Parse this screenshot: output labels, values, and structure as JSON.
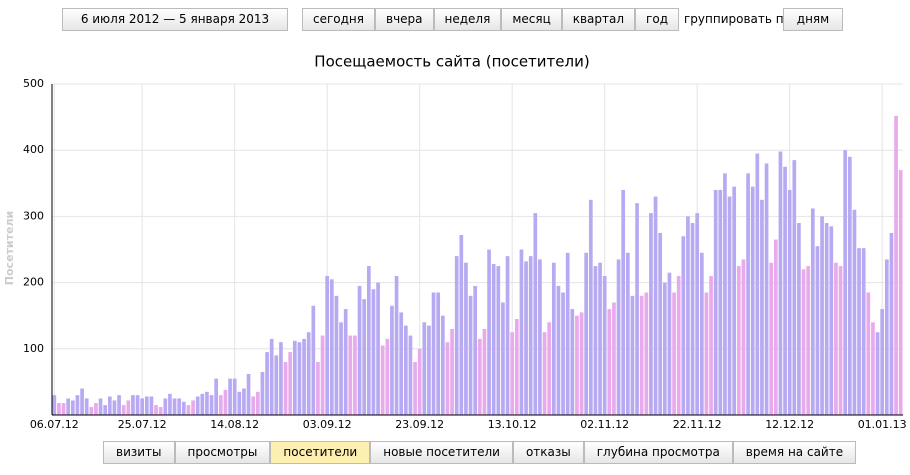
{
  "ui": {
    "date_range": "6 июля 2012 — 5 января 2013",
    "periods": [
      "сегодня",
      "вчера",
      "неделя",
      "месяц",
      "квартал",
      "год"
    ],
    "group_label": "группировать по",
    "group_value": "дням",
    "tabs": [
      "визиты",
      "просмотры",
      "посетители",
      "новые посетители",
      "отказы",
      "глубина просмотра",
      "время на сайте"
    ]
  },
  "chart_data": {
    "type": "bar",
    "title": "Посещаемость сайта (посетители)",
    "y_label": "Посетители",
    "categories": [
      "06.07.12",
      null,
      null,
      null,
      null,
      null,
      null,
      null,
      null,
      null,
      null,
      null,
      null,
      null,
      null,
      null,
      null,
      null,
      null,
      "25.07.12",
      null,
      null,
      null,
      null,
      null,
      null,
      null,
      null,
      null,
      null,
      null,
      null,
      null,
      null,
      null,
      null,
      null,
      null,
      null,
      "14.08.12",
      null,
      null,
      null,
      null,
      null,
      null,
      null,
      null,
      null,
      null,
      null,
      null,
      null,
      null,
      null,
      null,
      null,
      null,
      null,
      "03.09.12",
      null,
      null,
      null,
      null,
      null,
      null,
      null,
      null,
      null,
      null,
      null,
      null,
      null,
      null,
      null,
      null,
      null,
      null,
      null,
      "23.09.12",
      null,
      null,
      null,
      null,
      null,
      null,
      null,
      null,
      null,
      null,
      null,
      null,
      null,
      null,
      null,
      null,
      null,
      null,
      null,
      "13.10.12",
      null,
      null,
      null,
      null,
      null,
      null,
      null,
      null,
      null,
      null,
      null,
      null,
      null,
      null,
      null,
      null,
      null,
      null,
      null,
      "02.11.12",
      null,
      null,
      null,
      null,
      null,
      null,
      null,
      null,
      null,
      null,
      null,
      null,
      null,
      null,
      null,
      null,
      null,
      null,
      null,
      "22.11.12",
      null,
      null,
      null,
      null,
      null,
      null,
      null,
      null,
      null,
      null,
      null,
      null,
      null,
      null,
      null,
      null,
      null,
      null,
      null,
      "12.12.12",
      null,
      null,
      null,
      null,
      null,
      null,
      null,
      null,
      null,
      null,
      null,
      null,
      null,
      null,
      null,
      null,
      null,
      null,
      null,
      "01.01.13",
      null,
      null,
      null,
      null
    ],
    "series": [
      {
        "color": "#b8aaf2",
        "values": [
          30,
          null,
          null,
          25,
          22,
          30,
          40,
          25,
          null,
          null,
          25,
          15,
          28,
          22,
          30,
          null,
          null,
          30,
          30,
          25,
          28,
          28,
          null,
          null,
          25,
          32,
          25,
          25,
          20,
          null,
          null,
          28,
          32,
          35,
          30,
          55,
          null,
          null,
          55,
          55,
          35,
          40,
          62,
          null,
          null,
          65,
          95,
          115,
          90,
          110,
          null,
          null,
          112,
          110,
          115,
          125,
          165,
          null,
          null,
          210,
          205,
          180,
          140,
          160,
          null,
          null,
          195,
          175,
          225,
          190,
          200,
          null,
          null,
          165,
          210,
          155,
          135,
          120,
          null,
          null,
          140,
          135,
          185,
          185,
          150,
          null,
          null,
          240,
          272,
          230,
          180,
          195,
          null,
          null,
          250,
          228,
          225,
          170,
          240,
          null,
          null,
          250,
          232,
          240,
          305,
          235,
          null,
          null,
          230,
          195,
          185,
          245,
          160,
          null,
          null,
          245,
          325,
          225,
          230,
          210,
          null,
          null,
          235,
          340,
          245,
          180,
          320,
          null,
          null,
          305,
          330,
          275,
          200,
          215,
          null,
          null,
          270,
          300,
          290,
          305,
          245,
          null,
          null,
          340,
          340,
          365,
          330,
          345,
          null,
          null,
          365,
          345,
          395,
          325,
          380,
          null,
          null,
          398,
          375,
          340,
          385,
          290,
          null,
          null,
          312,
          255,
          300,
          290,
          285,
          null,
          null,
          400,
          390,
          310,
          252,
          252,
          null,
          null,
          125,
          160,
          235,
          275,
          null,
          null
        ]
      },
      {
        "color": "#e9aaec",
        "values": [
          null,
          18,
          18,
          null,
          null,
          null,
          null,
          null,
          12,
          18,
          null,
          null,
          null,
          null,
          null,
          15,
          22,
          null,
          null,
          null,
          null,
          null,
          15,
          12,
          null,
          null,
          null,
          null,
          null,
          15,
          22,
          null,
          null,
          null,
          null,
          null,
          30,
          38,
          null,
          null,
          null,
          null,
          null,
          28,
          35,
          null,
          null,
          null,
          null,
          null,
          80,
          95,
          null,
          null,
          null,
          null,
          null,
          80,
          120,
          null,
          null,
          null,
          null,
          null,
          120,
          120,
          null,
          null,
          null,
          null,
          null,
          105,
          115,
          null,
          null,
          null,
          null,
          null,
          80,
          100,
          null,
          null,
          null,
          null,
          null,
          110,
          130,
          null,
          null,
          null,
          null,
          null,
          115,
          130,
          null,
          null,
          null,
          null,
          null,
          125,
          145,
          null,
          null,
          null,
          null,
          null,
          125,
          140,
          null,
          null,
          null,
          null,
          null,
          150,
          155,
          null,
          null,
          null,
          null,
          null,
          160,
          170,
          null,
          null,
          null,
          null,
          null,
          180,
          185,
          null,
          null,
          null,
          null,
          null,
          185,
          210,
          null,
          null,
          null,
          null,
          null,
          185,
          210,
          null,
          null,
          null,
          null,
          null,
          225,
          235,
          null,
          null,
          null,
          null,
          null,
          230,
          265,
          null,
          null,
          null,
          null,
          null,
          220,
          225,
          null,
          null,
          null,
          null,
          null,
          230,
          225,
          null,
          null,
          null,
          null,
          null,
          185,
          140,
          null,
          null,
          null,
          null,
          452,
          370
        ]
      }
    ],
    "ylim": [
      0,
      500
    ],
    "yticks": [
      100,
      200,
      300,
      400,
      500
    ],
    "grid": true
  }
}
